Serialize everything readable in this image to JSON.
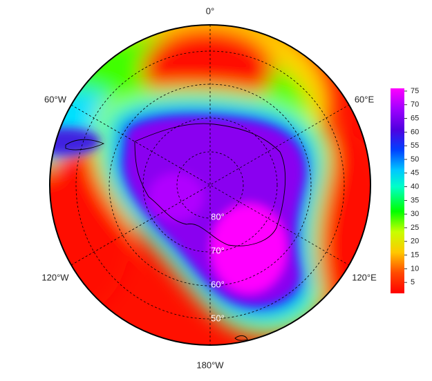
{
  "map": {
    "longitude_labels": [
      "0°",
      "60°W",
      "60°E",
      "120°W",
      "120°E",
      "180°W"
    ],
    "latitude_labels": [
      "80°",
      "70°",
      "60°",
      "50°"
    ],
    "colorbar": {
      "range": [
        1,
        76
      ],
      "ticks": [
        5,
        10,
        15,
        20,
        25,
        30,
        35,
        40,
        45,
        50,
        55,
        60,
        65,
        70,
        75
      ]
    }
  }
}
